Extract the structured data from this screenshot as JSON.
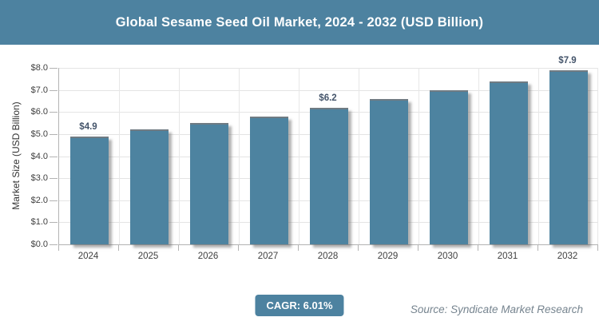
{
  "header": {
    "title": "Global Sesame Seed Oil Market, 2024 - 2032 (USD Billion)"
  },
  "chart_data": {
    "type": "bar",
    "title": "Global Sesame Seed Oil Market, 2024 - 2032 (USD Billion)",
    "categories": [
      "2024",
      "2025",
      "2026",
      "2027",
      "2028",
      "2029",
      "2030",
      "2031",
      "2032"
    ],
    "values": [
      4.9,
      5.2,
      5.5,
      5.8,
      6.2,
      6.6,
      7.0,
      7.4,
      7.9
    ],
    "value_labels": [
      "$4.9",
      null,
      null,
      null,
      "$6.2",
      null,
      null,
      null,
      "$7.9"
    ],
    "xlabel": "",
    "ylabel": "Market Size (USD Billion)",
    "ylim": [
      0,
      8
    ],
    "ytick_labels": [
      "$8.0",
      "$7.0",
      "$6.0",
      "$5.0",
      "$4.0",
      "$3.0",
      "$2.0",
      "$1.0",
      "$0.0"
    ],
    "grid": true,
    "legend": "none"
  },
  "footer": {
    "cagr_label": "CAGR: 6.01%",
    "source": "Source: Syndicate Market Research"
  },
  "colors": {
    "accent_teal": "#4d82a0",
    "bar_fill": "#4d83a0",
    "bar_top_edge": "#6f7b83",
    "value_label": "#44546a",
    "axis_line": "#b3b3b3",
    "gridline": "#e4e4e4",
    "tick_text": "#404040",
    "source_text": "#76848f",
    "title_text": "#ffffff"
  }
}
